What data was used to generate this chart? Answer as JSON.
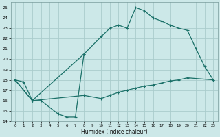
{
  "title": "",
  "xlabel": "Humidex (Indice chaleur)",
  "ylabel": "",
  "bg_color": "#cce8e8",
  "grid_color": "#aacccc",
  "line_color": "#1a7068",
  "xlim": [
    -0.5,
    23.5
  ],
  "ylim": [
    14,
    25.5
  ],
  "yticks": [
    14,
    15,
    16,
    17,
    18,
    19,
    20,
    21,
    22,
    23,
    24,
    25
  ],
  "xticks": [
    0,
    1,
    2,
    3,
    4,
    5,
    6,
    7,
    8,
    9,
    10,
    11,
    12,
    13,
    14,
    15,
    16,
    17,
    18,
    19,
    20,
    21,
    22,
    23
  ],
  "line1_x": [
    0,
    2,
    3,
    5,
    6,
    7,
    8
  ],
  "line1_y": [
    18,
    16,
    16,
    14.7,
    14.4,
    14.4,
    20.5
  ],
  "line2_x": [
    0,
    1,
    2,
    8,
    10,
    11,
    12,
    13,
    14,
    15,
    16,
    17,
    18,
    19,
    20,
    21,
    22,
    23
  ],
  "line2_y": [
    18,
    17.8,
    16,
    20.5,
    22.2,
    23.0,
    23.3,
    23.0,
    25.0,
    24.7,
    24.0,
    23.7,
    23.3,
    23.0,
    22.8,
    21.0,
    19.3,
    18.0
  ],
  "line3_x": [
    0,
    2,
    8,
    10,
    11,
    12,
    13,
    14,
    15,
    16,
    17,
    18,
    19,
    20,
    23
  ],
  "line3_y": [
    18,
    16,
    16.5,
    16.2,
    16.5,
    16.8,
    17.0,
    17.2,
    17.4,
    17.5,
    17.7,
    17.9,
    18.0,
    18.2,
    18.0
  ],
  "marker_size": 2.5,
  "line_width": 0.9
}
